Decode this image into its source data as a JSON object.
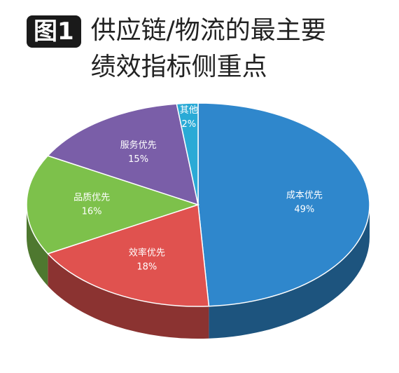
{
  "chart_data": {
    "type": "pie3d",
    "badge": "图1",
    "title": "供应链/物流的最主要绩效指标侧重点",
    "categories": [
      "成本优先",
      "效率优先",
      "品质优先",
      "服务优先",
      "其他"
    ],
    "values": [
      49,
      18,
      16,
      15,
      2
    ],
    "value_labels": [
      "49%",
      "18%",
      "16%",
      "15%",
      "2%"
    ],
    "colors": [
      "#2f87cc",
      "#e0524f",
      "#7dc14b",
      "#7a5ea8",
      "#2aaad6"
    ]
  }
}
